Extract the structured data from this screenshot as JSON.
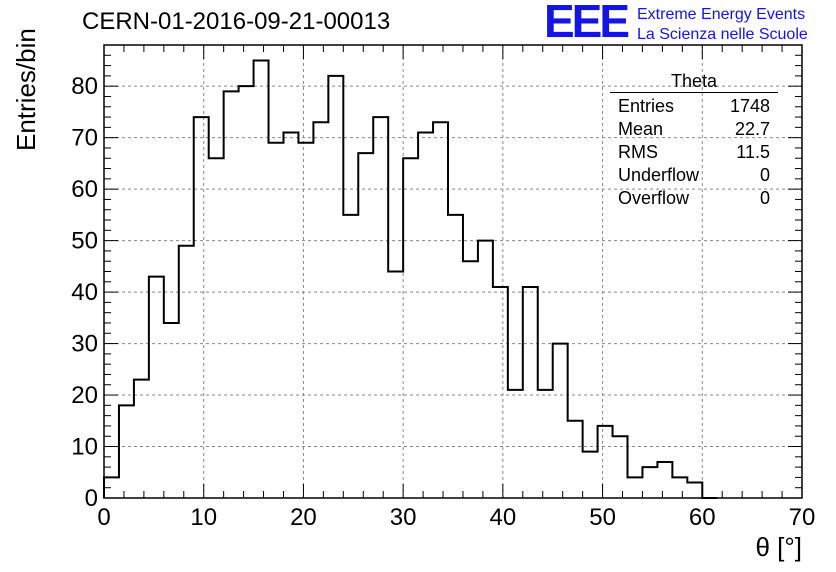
{
  "header": {
    "run_id": "CERN-01-2016-09-21-00013"
  },
  "logo": {
    "mark": "EEE",
    "line1": "Extreme Energy Events",
    "line2": "La Scienza nelle Scuole",
    "color": "#1414e6"
  },
  "stats_box": {
    "title": "Theta",
    "rows": [
      {
        "label": "Entries",
        "value": "1748"
      },
      {
        "label": "Mean",
        "value": "22.7"
      },
      {
        "label": "RMS",
        "value": "11.5"
      },
      {
        "label": "Underflow",
        "value": "0"
      },
      {
        "label": "Overflow",
        "value": "0"
      }
    ]
  },
  "chart_data": {
    "type": "bar",
    "style": "step-histogram",
    "title": "CERN-01-2016-09-21-00013",
    "xlabel": "θ [°]",
    "ylabel": "Entries/bin",
    "xlim": [
      0,
      70
    ],
    "ylim": [
      0,
      88
    ],
    "x_ticks": [
      0,
      10,
      20,
      30,
      40,
      50,
      60,
      70
    ],
    "y_ticks": [
      0,
      10,
      20,
      30,
      40,
      50,
      60,
      70,
      80
    ],
    "grid": true,
    "bin_width": 1.5,
    "bin_start": 0,
    "values": [
      4,
      18,
      23,
      43,
      34,
      49,
      74,
      66,
      79,
      80,
      85,
      69,
      71,
      69,
      73,
      82,
      55,
      67,
      74,
      44,
      66,
      71,
      73,
      55,
      46,
      50,
      41,
      21,
      41,
      21,
      30,
      15,
      9,
      14,
      12,
      4,
      6,
      7,
      4,
      3,
      0
    ]
  }
}
